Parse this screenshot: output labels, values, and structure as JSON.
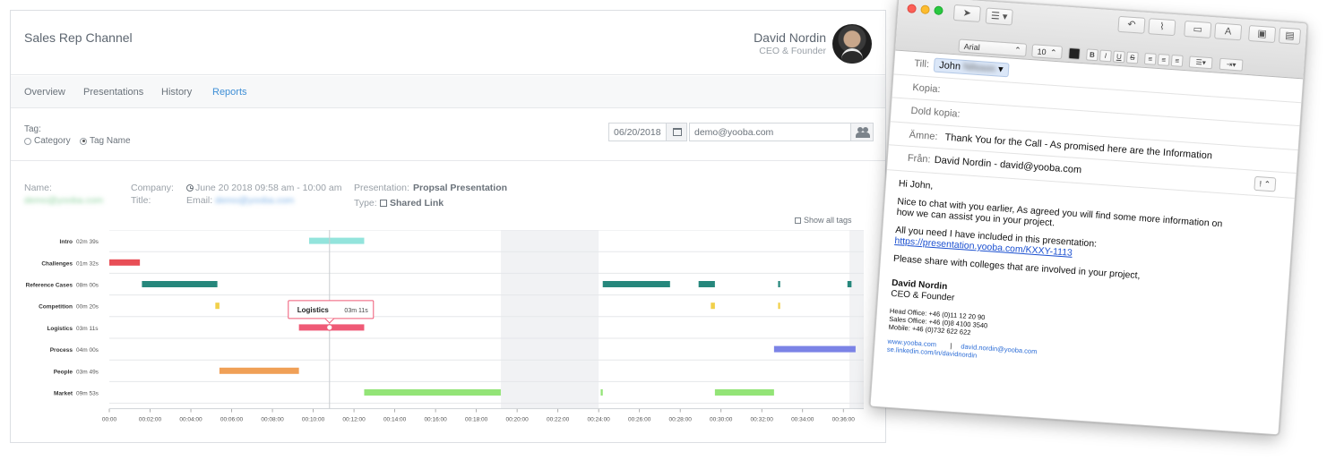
{
  "app": {
    "title": "Sales Rep Channel",
    "user_name": "David Nordin",
    "user_role": "CEO & Founder"
  },
  "nav": [
    {
      "label": "Overview",
      "active": false
    },
    {
      "label": "Presentations",
      "active": false
    },
    {
      "label": "History",
      "active": false
    },
    {
      "label": "Reports",
      "active": true
    }
  ],
  "filters": {
    "tag_label": "Tag:",
    "radio_category": "Category",
    "radio_tagname": "Tag Name",
    "selected": "Tag Name",
    "date": "06/20/2018",
    "email": "demo@yooba.com"
  },
  "meta": {
    "name_label": "Name:",
    "name_value": "demo@yooba.com",
    "company_label": "Company:",
    "title_label": "Title:",
    "datetime": "June 20 2018 09:58 am - 10:00 am",
    "email_label": "Email:",
    "email_value": "demo@yooba.com",
    "presentation_label": "Presentation:",
    "presentation_value": "Propsal Presentation",
    "type_label": "Type:",
    "type_value": "Shared Link",
    "show_all_tags": "Show all tags"
  },
  "chart_data": {
    "type": "timeline",
    "x_unit": "minutes",
    "xlim": [
      0,
      37
    ],
    "x_ticks": [
      "00:00",
      "00:02:00",
      "00:04:00",
      "00:06:00",
      "00:08:00",
      "00:10:00",
      "00:12:00",
      "00:14:00",
      "00:16:00",
      "00:18:00",
      "00:20:00",
      "00:22:00",
      "00:24:00",
      "00:26:00",
      "00:28:00",
      "00:30:00",
      "00:32:00",
      "00:34:00",
      "00:36:00"
    ],
    "shaded_ranges": [
      [
        19.2,
        24
      ],
      [
        36.3,
        37
      ]
    ],
    "cursor_x": 10.8,
    "tooltip": {
      "tag": "Logistics",
      "duration": "03m 11s"
    },
    "rows": [
      {
        "tag": "Intro",
        "duration": "02m 39s",
        "color": "#93e4dc",
        "segments": [
          [
            9.8,
            12.5
          ]
        ]
      },
      {
        "tag": "Challenges",
        "duration": "01m 32s",
        "color": "#e84e56",
        "segments": [
          [
            0,
            1.5
          ]
        ]
      },
      {
        "tag": "Reference Cases",
        "duration": "08m 00s",
        "color": "#26877c",
        "segments": [
          [
            1.6,
            5.3
          ],
          [
            24.2,
            27.5
          ],
          [
            28.9,
            29.7
          ],
          [
            32.8,
            32.9
          ],
          [
            36.2,
            36.4
          ],
          [
            37,
            37.1
          ]
        ]
      },
      {
        "tag": "Competition",
        "duration": "00m 20s",
        "color": "#f1d04a",
        "segments": [
          [
            5.2,
            5.4
          ],
          [
            29.5,
            29.7
          ],
          [
            32.8,
            32.9
          ]
        ]
      },
      {
        "tag": "Logistics",
        "duration": "03m 11s",
        "color": "#ef5a76",
        "segments": [
          [
            9.3,
            12.5
          ]
        ]
      },
      {
        "tag": "Process",
        "duration": "04m 00s",
        "color": "#7b83e6",
        "segments": [
          [
            32.6,
            36.6
          ]
        ]
      },
      {
        "tag": "People",
        "duration": "03m 49s",
        "color": "#f0a057",
        "segments": [
          [
            5.4,
            9.3
          ]
        ]
      },
      {
        "tag": "Market",
        "duration": "09m 53s",
        "color": "#93e477",
        "segments": [
          [
            12.5,
            19.2
          ],
          [
            24.1,
            24.2
          ],
          [
            29.7,
            32.6
          ]
        ]
      }
    ]
  },
  "mail": {
    "to_label": "Till:",
    "to_value": "John",
    "cc_label": "Kopia:",
    "bcc_label": "Dold kopia:",
    "subject_label": "Ämne:",
    "subject_value": "Thank You for the Call - As promised here are the Information",
    "from_label": "Från:",
    "from_value": "David Nordin - david@yooba.com",
    "font_name": "Arial",
    "font_size": "10",
    "priority": "!",
    "body": {
      "greeting": "Hi John,",
      "p1_line1": "Nice to chat with you earlier, As agreed you will find some more information on",
      "p1_line2": "how we can assist you in your project.",
      "p2": "All you need I have included in this presentation:",
      "link": "https://presentation.yooba.com/KXXY-1113",
      "p3": "Please share with colleges that are involved in your project,",
      "sig_name": "David Nordin",
      "sig_role": "CEO & Founder",
      "head_office": "Head Office: +46 (0)11 12 20 90",
      "sales_office": "Sales Office: +46 (0)8 4100 3540",
      "mobile": "Mobile: +46 (0)732 622 622",
      "web": "www.yooba.com",
      "sep": "|",
      "email": "david.nordin@yooba.com",
      "linkedin": "se.linkedin.com/in/davidnordin"
    }
  },
  "colors": {
    "accent": "#3f8fd6"
  }
}
